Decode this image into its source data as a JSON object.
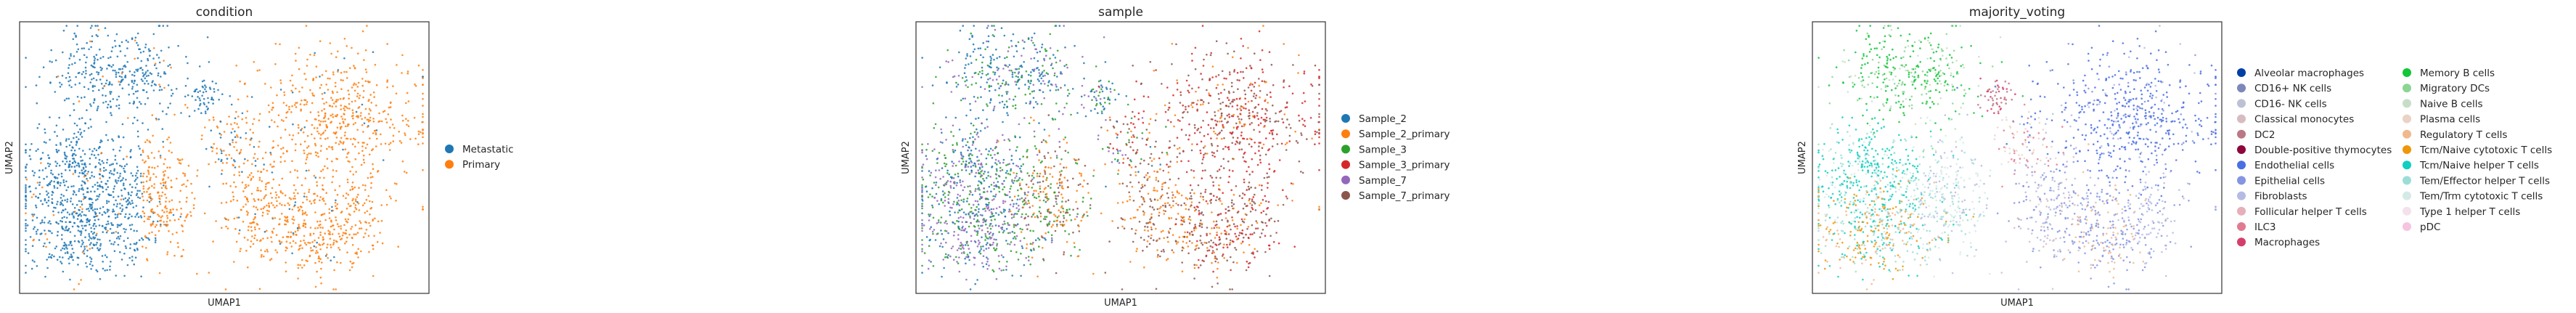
{
  "chart_data": [
    {
      "type": "scatter",
      "title": "condition",
      "xlabel": "UMAP1",
      "ylabel": "UMAP2",
      "ticks": "none",
      "grid": false,
      "legend_position": "right",
      "series": [
        {
          "name": "Metastatic",
          "color": "#1f77b4"
        },
        {
          "name": "Primary",
          "color": "#ff7f0e"
        }
      ]
    },
    {
      "type": "scatter",
      "title": "sample",
      "xlabel": "UMAP1",
      "ylabel": "UMAP2",
      "ticks": "none",
      "grid": false,
      "legend_position": "right",
      "series": [
        {
          "name": "Sample_2",
          "color": "#1f77b4"
        },
        {
          "name": "Sample_2_primary",
          "color": "#ff7f0e"
        },
        {
          "name": "Sample_3",
          "color": "#2ca02c"
        },
        {
          "name": "Sample_3_primary",
          "color": "#d62728"
        },
        {
          "name": "Sample_7",
          "color": "#9467bd"
        },
        {
          "name": "Sample_7_primary",
          "color": "#8c564b"
        }
      ]
    },
    {
      "type": "scatter",
      "title": "majority_voting",
      "xlabel": "UMAP1",
      "ylabel": "UMAP2",
      "ticks": "none",
      "grid": false,
      "legend_position": "right",
      "series": [
        {
          "name": "Alveolar macrophages",
          "color": "#023fa5"
        },
        {
          "name": "CD16+ NK cells",
          "color": "#7d87b9"
        },
        {
          "name": "CD16- NK cells",
          "color": "#bec1d4"
        },
        {
          "name": "Classical monocytes",
          "color": "#d6bcc0"
        },
        {
          "name": "DC2",
          "color": "#bb7784"
        },
        {
          "name": "Double-positive thymocytes",
          "color": "#8e063b"
        },
        {
          "name": "Endothelial cells",
          "color": "#4a6fe3"
        },
        {
          "name": "Epithelial cells",
          "color": "#8595e1"
        },
        {
          "name": "Fibroblasts",
          "color": "#b5bbe3"
        },
        {
          "name": "Follicular helper T cells",
          "color": "#e6afb9"
        },
        {
          "name": "ILC3",
          "color": "#e07b91"
        },
        {
          "name": "Macrophages",
          "color": "#d33f6a"
        },
        {
          "name": "Memory B cells",
          "color": "#11c638"
        },
        {
          "name": "Migratory DCs",
          "color": "#8dd593"
        },
        {
          "name": "Naive B cells",
          "color": "#c6dec7"
        },
        {
          "name": "Plasma cells",
          "color": "#ead3c6"
        },
        {
          "name": "Regulatory T cells",
          "color": "#f0b98d"
        },
        {
          "name": "Tcm/Naive cytotoxic T cells",
          "color": "#ef9708"
        },
        {
          "name": "Tcm/Naive helper T cells",
          "color": "#0fcfc0"
        },
        {
          "name": "Tem/Effector helper T cells",
          "color": "#9cded6"
        },
        {
          "name": "Tem/Trm cytotoxic T cells",
          "color": "#d5eae7"
        },
        {
          "name": "Type 1 helper T cells",
          "color": "#f3e1eb"
        },
        {
          "name": "pDC",
          "color": "#f6c4e1"
        }
      ]
    }
  ]
}
